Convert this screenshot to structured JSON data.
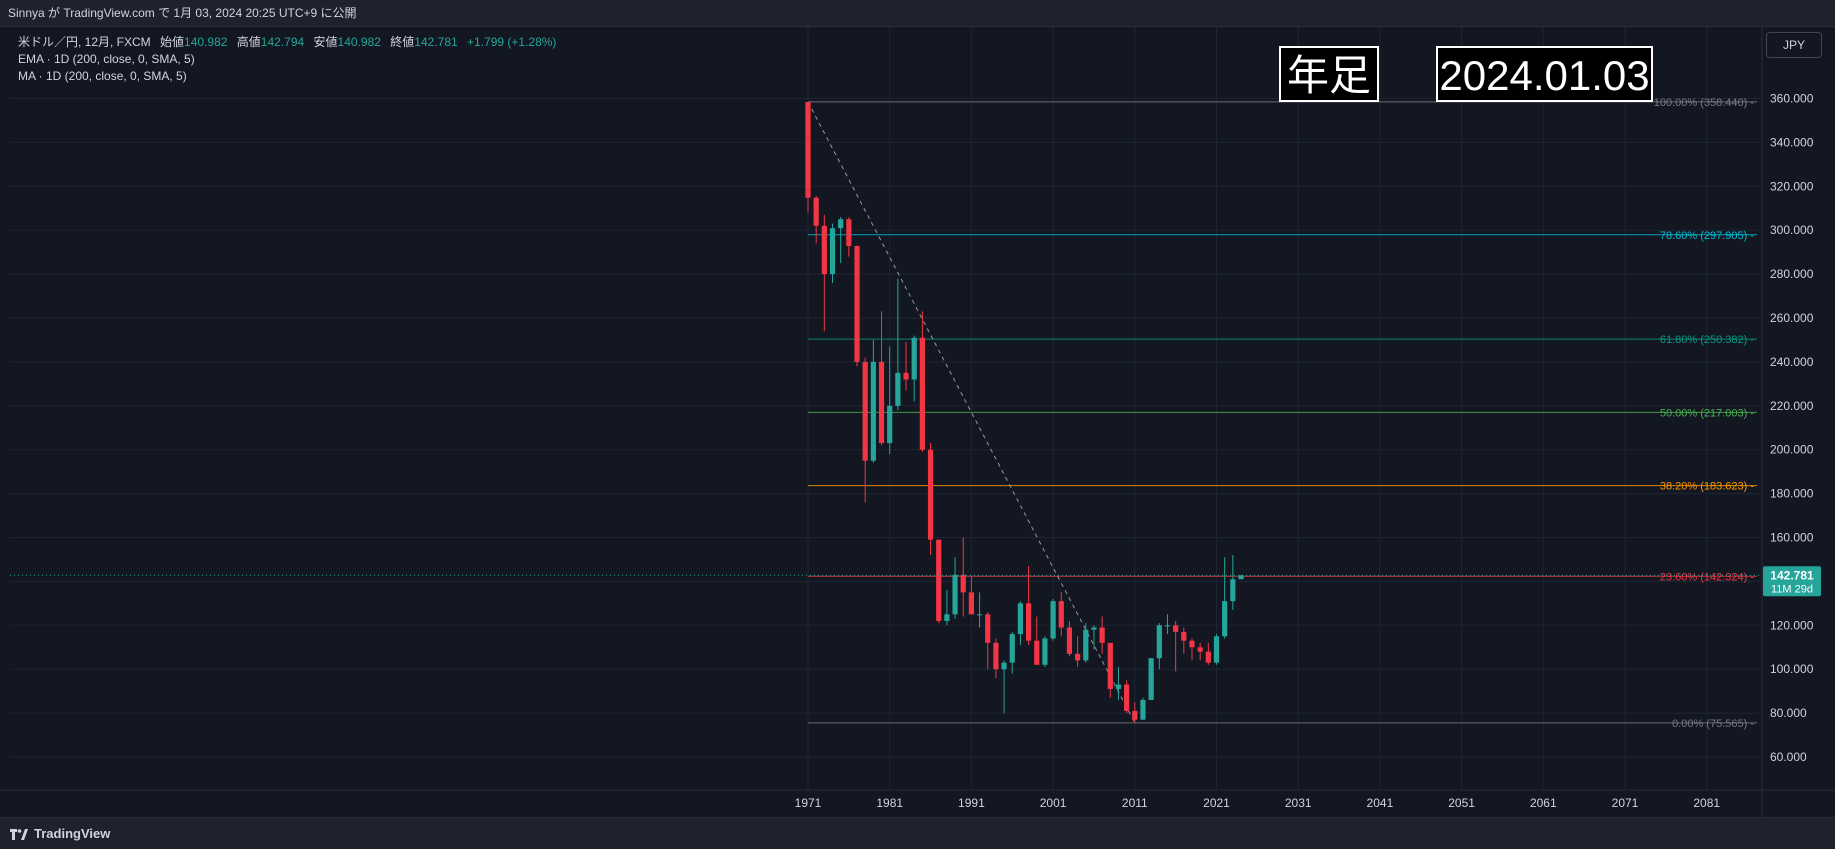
{
  "header": {
    "publish_text": "Sinnya が TradingView.com で 1月 03, 2024 20:25 UTC+9 に公開"
  },
  "legend": {
    "symbol": "米ドル／円, 12月, FXCM",
    "open_label": "始値",
    "open": "140.982",
    "high_label": "高値",
    "high": "142.794",
    "low_label": "安値",
    "low": "140.982",
    "close_label": "終値",
    "close": "142.781",
    "change": "+1.799 (+1.28%)",
    "ema": "EMA · 1D (200, close, 0, SMA, 5)",
    "ma": "MA · 1D (200, close, 0, SMA, 5)"
  },
  "currency_button": "JPY",
  "annotations": {
    "timeframe": "年足",
    "date": "2024.01.03"
  },
  "footer": {
    "brand": "TradingView"
  },
  "colors": {
    "background": "#131722",
    "up": "#26a69a",
    "down": "#f23645",
    "grid": "#1f2433",
    "text": "#d1d4dc"
  },
  "chart_data": {
    "type": "candlestick",
    "xlim": [
      1971,
      2091
    ],
    "ylim": [
      50,
      370
    ],
    "x_ticks": [
      "1971",
      "1981",
      "1991",
      "2001",
      "2011",
      "2021",
      "2031",
      "2041",
      "2051",
      "2061",
      "2071",
      "2081"
    ],
    "y_ticks": [
      "60.000",
      "80.000",
      "100.000",
      "120.000",
      "140.000",
      "160.000",
      "180.000",
      "200.000",
      "220.000",
      "240.000",
      "260.000",
      "280.000",
      "300.000",
      "320.000",
      "340.000",
      "360.000"
    ],
    "last_price": {
      "value": 142.781,
      "label": "142.781",
      "countdown": "11M 29d"
    },
    "fib_levels": [
      {
        "value": 358.44,
        "label": "100.00% (358.440)",
        "color": "#787b86"
      },
      {
        "value": 297.905,
        "label": "78.60% (297.905)",
        "color": "#00bcd4"
      },
      {
        "value": 250.382,
        "label": "61.80% (250.382)",
        "color": "#089981"
      },
      {
        "value": 217.003,
        "label": "50.00% (217.003)",
        "color": "#4caf50"
      },
      {
        "value": 183.623,
        "label": "38.20% (183.623)",
        "color": "#ff9800"
      },
      {
        "value": 142.324,
        "label": "23.60% (142.324)",
        "color": "#f23645"
      },
      {
        "value": 75.565,
        "label": "0.00% (75.565)",
        "color": "#787b86"
      }
    ],
    "trendline": {
      "from": [
        1971,
        358.44
      ],
      "to": [
        2011,
        75.565
      ]
    },
    "candles": [
      [
        1971,
        358.4,
        358.4,
        308,
        314.8
      ],
      [
        1972,
        314.8,
        315.5,
        294,
        302
      ],
      [
        1973,
        302,
        307,
        254,
        280
      ],
      [
        1974,
        280,
        303,
        276,
        300.9
      ],
      [
        1975,
        300.9,
        306,
        285,
        305
      ],
      [
        1976,
        305,
        306,
        288,
        292.8
      ],
      [
        1977,
        292.8,
        293,
        238,
        240
      ],
      [
        1978,
        240,
        242,
        176,
        195
      ],
      [
        1979,
        195,
        250,
        194,
        240
      ],
      [
        1980,
        240,
        263,
        202,
        203
      ],
      [
        1981,
        203,
        247,
        198,
        220
      ],
      [
        1982,
        220,
        278,
        218,
        235
      ],
      [
        1983,
        235,
        249,
        227,
        232
      ],
      [
        1984,
        232,
        252,
        222,
        251
      ],
      [
        1985,
        251,
        263,
        199,
        200
      ],
      [
        1986,
        200,
        203,
        152,
        159
      ],
      [
        1987,
        159,
        159,
        121,
        122
      ],
      [
        1988,
        122,
        136,
        120,
        125
      ],
      [
        1989,
        125,
        151,
        123,
        143
      ],
      [
        1990,
        143,
        160,
        124,
        135
      ],
      [
        1991,
        135,
        142,
        125,
        125
      ],
      [
        1992,
        125,
        135,
        119,
        125
      ],
      [
        1993,
        125,
        126,
        100,
        112
      ],
      [
        1994,
        112,
        114,
        96,
        100
      ],
      [
        1995,
        100,
        104,
        80,
        103
      ],
      [
        1996,
        103,
        117,
        98,
        116
      ],
      [
        1997,
        116,
        131,
        111,
        130
      ],
      [
        1998,
        130,
        147,
        111,
        113
      ],
      [
        1999,
        113,
        124,
        102,
        102
      ],
      [
        2000,
        102,
        115,
        101,
        114
      ],
      [
        2001,
        114,
        132,
        113,
        131
      ],
      [
        2002,
        131,
        135,
        115,
        119
      ],
      [
        2003,
        119,
        122,
        106,
        107
      ],
      [
        2004,
        107,
        115,
        101,
        104
      ],
      [
        2005,
        104,
        121,
        103,
        118
      ],
      [
        2006,
        118,
        120,
        109,
        119
      ],
      [
        2007,
        119,
        124,
        107,
        112
      ],
      [
        2008,
        112,
        112,
        87,
        91
      ],
      [
        2009,
        91,
        101,
        86,
        93
      ],
      [
        2010,
        93,
        95,
        80,
        81
      ],
      [
        2011,
        81,
        85,
        75.5,
        77
      ],
      [
        2012,
        77,
        87,
        77,
        86
      ],
      [
        2013,
        86,
        105,
        86,
        105
      ],
      [
        2014,
        105,
        121,
        100,
        120
      ],
      [
        2015,
        120,
        125,
        116,
        120
      ],
      [
        2016,
        120,
        122,
        99,
        117
      ],
      [
        2017,
        117,
        119,
        107,
        113
      ],
      [
        2018,
        113,
        114,
        104,
        110
      ],
      [
        2019,
        110,
        112,
        104,
        108
      ],
      [
        2020,
        108,
        112,
        102,
        103
      ],
      [
        2021,
        103,
        116,
        102,
        115
      ],
      [
        2022,
        115,
        151,
        114,
        131
      ],
      [
        2023,
        131,
        152,
        127,
        141
      ],
      [
        2024,
        141,
        142.8,
        141,
        142.8
      ]
    ]
  }
}
